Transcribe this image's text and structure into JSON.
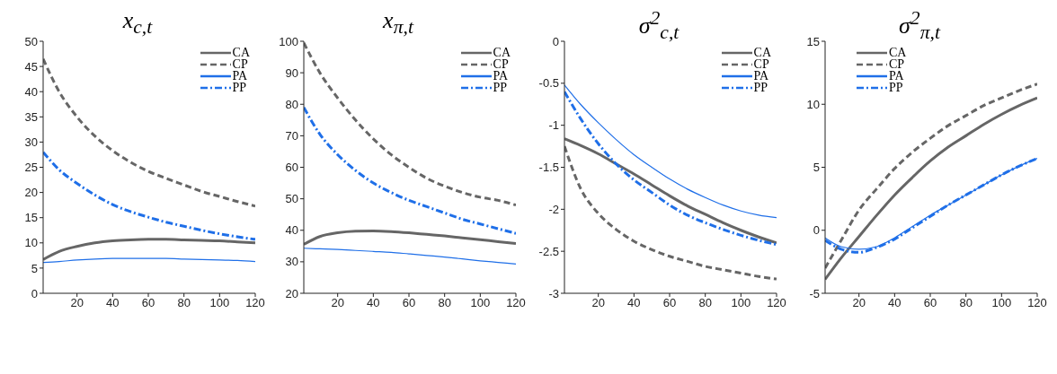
{
  "chart_data": [
    {
      "type": "line",
      "title": "x$_{c,t}$",
      "x": [
        1,
        10,
        20,
        30,
        40,
        50,
        60,
        70,
        80,
        90,
        100,
        110,
        120
      ],
      "xlim": [
        1,
        120
      ],
      "xticks": [
        20,
        40,
        60,
        80,
        100,
        120
      ],
      "ylim": [
        0,
        50
      ],
      "yticks": [
        0,
        5,
        10,
        15,
        20,
        25,
        30,
        35,
        40,
        45,
        50
      ],
      "grid": false,
      "legend": "top right",
      "marker": "none",
      "series": [
        {
          "name": "CA",
          "color": "#666666",
          "line_style": "solid",
          "values": [
            6.7,
            8.3,
            9.3,
            10,
            10.4,
            10.6,
            10.7,
            10.7,
            10.6,
            10.5,
            10.4,
            10.2,
            10
          ]
        },
        {
          "name": "CP",
          "color": "#666666",
          "line_style": "dashed",
          "values": [
            46.5,
            40,
            35,
            31.2,
            28.3,
            26,
            24.2,
            22.8,
            21.5,
            20.2,
            19.2,
            18.2,
            17.3
          ]
        },
        {
          "name": "PA",
          "color": "#1f6fe8",
          "line_style": "solid",
          "values": [
            6.1,
            6.3,
            6.6,
            6.8,
            6.9,
            6.9,
            6.9,
            6.9,
            6.8,
            6.7,
            6.6,
            6.5,
            6.3
          ]
        },
        {
          "name": "PP",
          "color": "#1f6fe8",
          "line_style": "dashdot",
          "values": [
            28,
            24.5,
            21.8,
            19.5,
            17.6,
            16.2,
            15.1,
            14.1,
            13.3,
            12.5,
            11.8,
            11.2,
            10.7
          ]
        }
      ]
    },
    {
      "type": "line",
      "title": "x$_{π,t}$",
      "x": [
        1,
        10,
        20,
        30,
        40,
        50,
        60,
        70,
        80,
        90,
        100,
        110,
        120
      ],
      "xlim": [
        1,
        120
      ],
      "xticks": [
        20,
        40,
        60,
        80,
        100,
        120
      ],
      "ylim": [
        20,
        100
      ],
      "yticks": [
        20,
        30,
        40,
        50,
        60,
        70,
        80,
        90,
        100
      ],
      "grid": false,
      "legend": "top right",
      "marker": "none",
      "series": [
        {
          "name": "CA",
          "color": "#666666",
          "line_style": "solid",
          "values": [
            35.5,
            38,
            39.2,
            39.7,
            39.8,
            39.6,
            39.2,
            38.7,
            38.2,
            37.6,
            37,
            36.4,
            35.8
          ]
        },
        {
          "name": "CP",
          "color": "#666666",
          "line_style": "dashed",
          "values": [
            99.5,
            90,
            82,
            75,
            69,
            64,
            60,
            56.5,
            54,
            52,
            50.5,
            49.5,
            48
          ]
        },
        {
          "name": "PA",
          "color": "#1f6fe8",
          "line_style": "solid",
          "values": [
            34.3,
            34.1,
            33.9,
            33.6,
            33.3,
            33,
            32.5,
            32,
            31.5,
            30.9,
            30.3,
            29.8,
            29.3
          ]
        },
        {
          "name": "PP",
          "color": "#1f6fe8",
          "line_style": "dashdot",
          "values": [
            79,
            70.5,
            64,
            59,
            55,
            52,
            49.5,
            47.5,
            45.5,
            43.5,
            42,
            40.5,
            39
          ]
        }
      ]
    },
    {
      "type": "line",
      "title": "σ$^{2}$$_{c,t}$",
      "x": [
        1,
        10,
        20,
        30,
        40,
        50,
        60,
        70,
        80,
        90,
        100,
        110,
        120
      ],
      "xlim": [
        1,
        120
      ],
      "xticks": [
        20,
        40,
        60,
        80,
        100,
        120
      ],
      "ylim": [
        -3,
        0
      ],
      "yticks": [
        -3,
        -2.5,
        -2,
        -1.5,
        -1,
        -0.5,
        0
      ],
      "grid": false,
      "legend": "top right",
      "marker": "none",
      "series": [
        {
          "name": "CA",
          "color": "#666666",
          "line_style": "solid",
          "values": [
            -1.16,
            -1.24,
            -1.34,
            -1.46,
            -1.58,
            -1.71,
            -1.84,
            -1.96,
            -2.06,
            -2.16,
            -2.25,
            -2.33,
            -2.4
          ]
        },
        {
          "name": "CP",
          "color": "#666666",
          "line_style": "dashed",
          "values": [
            -1.25,
            -1.75,
            -2.05,
            -2.24,
            -2.38,
            -2.48,
            -2.56,
            -2.62,
            -2.68,
            -2.72,
            -2.76,
            -2.8,
            -2.83
          ]
        },
        {
          "name": "PA",
          "color": "#1f6fe8",
          "line_style": "solid",
          "values": [
            -0.52,
            -0.75,
            -0.97,
            -1.17,
            -1.35,
            -1.5,
            -1.64,
            -1.76,
            -1.86,
            -1.95,
            -2.02,
            -2.07,
            -2.1
          ]
        },
        {
          "name": "PP",
          "color": "#1f6fe8",
          "line_style": "dashdot",
          "values": [
            -0.6,
            -0.92,
            -1.22,
            -1.46,
            -1.65,
            -1.8,
            -1.95,
            -2.07,
            -2.16,
            -2.24,
            -2.31,
            -2.37,
            -2.42
          ]
        }
      ]
    },
    {
      "type": "line",
      "title": "σ$^{2}$$_{π,t}$",
      "x": [
        1,
        10,
        20,
        30,
        40,
        50,
        60,
        70,
        80,
        90,
        100,
        110,
        120
      ],
      "xlim": [
        1,
        120
      ],
      "xticks": [
        20,
        40,
        60,
        80,
        100,
        120
      ],
      "ylim": [
        -5,
        15
      ],
      "yticks": [
        -5,
        0,
        5,
        10,
        15
      ],
      "grid": false,
      "legend": "top left",
      "marker": "none",
      "series": [
        {
          "name": "CA",
          "color": "#666666",
          "line_style": "solid",
          "values": [
            -3.9,
            -2.2,
            -0.5,
            1.2,
            2.8,
            4.2,
            5.5,
            6.6,
            7.5,
            8.4,
            9.2,
            9.9,
            10.5
          ]
        },
        {
          "name": "CP",
          "color": "#666666",
          "line_style": "dashed",
          "values": [
            -3,
            -0.8,
            1.6,
            3.3,
            4.9,
            6.2,
            7.3,
            8.3,
            9.1,
            9.9,
            10.5,
            11.1,
            11.6
          ]
        },
        {
          "name": "PA",
          "color": "#1f6fe8",
          "line_style": "solid",
          "values": [
            -0.6,
            -1.3,
            -1.5,
            -1.3,
            -0.6,
            0.3,
            1.2,
            2,
            2.8,
            3.6,
            4.4,
            5.1,
            5.7
          ]
        },
        {
          "name": "PP",
          "color": "#1f6fe8",
          "line_style": "dashdot",
          "values": [
            -0.8,
            -1.5,
            -1.75,
            -1.35,
            -0.7,
            0.2,
            1.1,
            2,
            2.8,
            3.6,
            4.4,
            5.1,
            5.7
          ]
        }
      ]
    }
  ]
}
